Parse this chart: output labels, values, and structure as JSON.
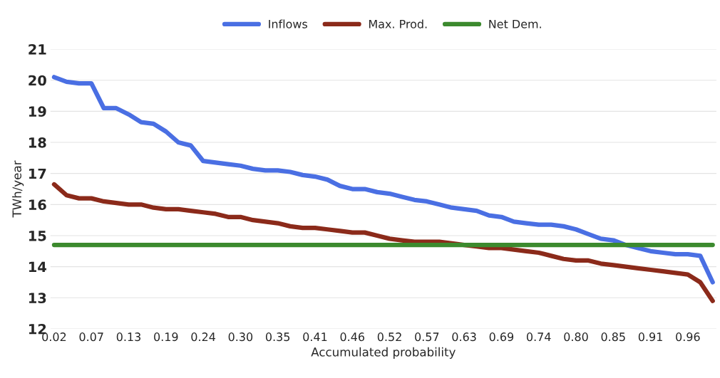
{
  "chart_data": {
    "type": "line",
    "xlabel": "Accumulated probability",
    "ylabel": "TWh/year",
    "categories": [
      "0.02",
      null,
      null,
      "0.07",
      null,
      null,
      "0.13",
      null,
      null,
      "0.19",
      null,
      null,
      "0.24",
      null,
      null,
      "0.30",
      null,
      null,
      "0.35",
      null,
      null,
      "0.41",
      null,
      null,
      "0.46",
      null,
      null,
      "0.52",
      null,
      null,
      "0.57",
      null,
      null,
      "0.63",
      null,
      null,
      "0.69",
      null,
      null,
      "0.74",
      null,
      null,
      "0.80",
      null,
      null,
      "0.85",
      null,
      null,
      "0.91",
      null,
      null,
      "0.96",
      null,
      null
    ],
    "series": [
      {
        "name": "Inflows",
        "color": "#4a6fe3",
        "values": [
          20.1,
          19.95,
          19.9,
          19.9,
          19.1,
          19.1,
          18.9,
          18.65,
          18.6,
          18.35,
          18.0,
          17.9,
          17.4,
          17.35,
          17.3,
          17.25,
          17.15,
          17.1,
          17.1,
          17.05,
          16.95,
          16.9,
          16.8,
          16.6,
          16.5,
          16.5,
          16.4,
          16.35,
          16.25,
          16.15,
          16.1,
          16.0,
          15.9,
          15.85,
          15.8,
          15.65,
          15.6,
          15.45,
          15.4,
          15.35,
          15.35,
          15.3,
          15.2,
          15.05,
          14.9,
          14.85,
          14.7,
          14.6,
          14.5,
          14.45,
          14.4,
          14.4,
          14.35,
          13.5
        ]
      },
      {
        "name": "Max. Prod.",
        "color": "#8b2a1a",
        "values": [
          16.65,
          16.3,
          16.2,
          16.2,
          16.1,
          16.05,
          16.0,
          16.0,
          15.9,
          15.85,
          15.85,
          15.8,
          15.75,
          15.7,
          15.6,
          15.6,
          15.5,
          15.45,
          15.4,
          15.3,
          15.25,
          15.25,
          15.2,
          15.15,
          15.1,
          15.1,
          15.0,
          14.9,
          14.85,
          14.8,
          14.8,
          14.8,
          14.75,
          14.7,
          14.65,
          14.6,
          14.6,
          14.55,
          14.5,
          14.45,
          14.35,
          14.25,
          14.2,
          14.2,
          14.1,
          14.05,
          14.0,
          13.95,
          13.9,
          13.85,
          13.8,
          13.75,
          13.5,
          12.9
        ]
      },
      {
        "name": "Net Dem.",
        "color": "#3c8a2e",
        "values": [
          14.7,
          14.7,
          14.7,
          14.7,
          14.7,
          14.7,
          14.7,
          14.7,
          14.7,
          14.7,
          14.7,
          14.7,
          14.7,
          14.7,
          14.7,
          14.7,
          14.7,
          14.7,
          14.7,
          14.7,
          14.7,
          14.7,
          14.7,
          14.7,
          14.7,
          14.7,
          14.7,
          14.7,
          14.7,
          14.7,
          14.7,
          14.7,
          14.7,
          14.7,
          14.7,
          14.7,
          14.7,
          14.7,
          14.7,
          14.7,
          14.7,
          14.7,
          14.7,
          14.7,
          14.7,
          14.7,
          14.7,
          14.7,
          14.7,
          14.7,
          14.7,
          14.7,
          14.7,
          14.7
        ]
      }
    ],
    "ylim": [
      12,
      21
    ],
    "yticks": [
      12,
      13,
      14,
      15,
      16,
      17,
      18,
      19,
      20,
      21
    ],
    "grid": "y",
    "legend": "top",
    "marker": "none",
    "line_style": "solid"
  }
}
